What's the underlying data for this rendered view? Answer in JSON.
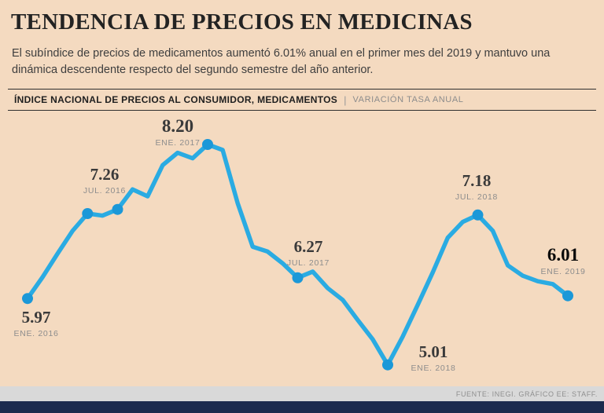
{
  "header": {
    "title": "TENDENCIA DE PRECIOS EN MEDICINAS",
    "subtitle": "El subíndice de precios de medicamentos aumentó 6.01% anual en el primer mes del 2019 y mantuvo una dinámica descendente respecto del segundo semestre del año anterior."
  },
  "section_bar": {
    "label_bold": "ÍNDICE NACIONAL DE PRECIOS AL CONSUMIDOR, MEDICAMENTOS",
    "divider": "|",
    "label_light": "VARIACIÓN TASA ANUAL"
  },
  "footer": {
    "source": "FUENTE: INEGI. GRÁFICO EE: STAFF."
  },
  "colors": {
    "background": "#f4dac0",
    "line": "#2aabe2",
    "marker": "#1b98d8",
    "rule": "#2e2e2e",
    "bottom_bar": "#1c2b4e",
    "footer_strip": "#d9d9d9"
  },
  "chart_data": {
    "type": "line",
    "title": "ÍNDICE NACIONAL DE PRECIOS AL CONSUMIDOR, MEDICAMENTOS",
    "subtitle": "VARIACIÓN TASA ANUAL",
    "x_unit": "monthly, ENE 2016 - ENE 2019",
    "values": [
      5.97,
      6.28,
      6.62,
      6.95,
      7.2,
      7.17,
      7.26,
      7.55,
      7.45,
      7.9,
      8.08,
      8.0,
      8.2,
      8.12,
      7.35,
      6.72,
      6.65,
      6.48,
      6.27,
      6.36,
      6.12,
      5.95,
      5.66,
      5.38,
      5.01,
      5.42,
      5.88,
      6.35,
      6.85,
      7.08,
      7.18,
      6.95,
      6.45,
      6.3,
      6.22,
      6.18,
      6.01
    ],
    "ylim": [
      4.7,
      8.7
    ],
    "grid": false,
    "marker_month_indices": [
      0,
      4,
      6,
      12,
      18,
      24,
      30,
      36
    ],
    "annotations": [
      {
        "value": "5.97",
        "date": "ENE. 2016",
        "month_index": 0
      },
      {
        "value": "7.26",
        "date": "JUL. 2016",
        "month_index": 6
      },
      {
        "value": "8.20",
        "date": "ENE. 2017",
        "month_index": 12
      },
      {
        "value": "6.27",
        "date": "JUL. 2017",
        "month_index": 18
      },
      {
        "value": "5.01",
        "date": "ENE. 2018",
        "month_index": 24
      },
      {
        "value": "7.18",
        "date": "JUL. 2018",
        "month_index": 30
      },
      {
        "value": "6.01",
        "date": "ENE. 2019",
        "month_index": 36,
        "bold": true
      }
    ]
  }
}
